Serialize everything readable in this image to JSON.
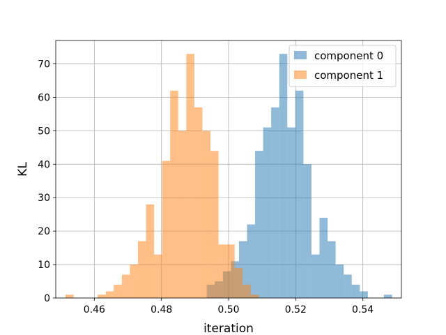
{
  "chart_data": {
    "type": "histogram",
    "xlabel": "iteration",
    "ylabel": "KL",
    "xlim": [
      0.4485,
      0.5515
    ],
    "ylim": [
      0,
      77
    ],
    "xticks": [
      0.46,
      0.48,
      0.5,
      0.52,
      0.54
    ],
    "yticks": [
      0,
      10,
      20,
      30,
      40,
      50,
      60,
      70
    ],
    "grid": true,
    "legend_position": "top-right",
    "series": [
      {
        "name": "component 0",
        "color": "#1f77b4",
        "opacity": 0.5,
        "bin_start": 0.4935,
        "bin_width": 0.0024,
        "counts": [
          4,
          5,
          8,
          11,
          17,
          22,
          44,
          51,
          57,
          73,
          51,
          62,
          40,
          13,
          24,
          17,
          10,
          7,
          4,
          2,
          0,
          0,
          1
        ]
      },
      {
        "name": "component 1",
        "color": "#ff7f0e",
        "opacity": 0.5,
        "bin_start": 0.4514,
        "bin_width": 0.0024,
        "counts": [
          1,
          0,
          0,
          0,
          1,
          2,
          4,
          7,
          10,
          17,
          28,
          13,
          41,
          62,
          50,
          73,
          57,
          50,
          44,
          16,
          16,
          9,
          4,
          1
        ]
      }
    ]
  }
}
